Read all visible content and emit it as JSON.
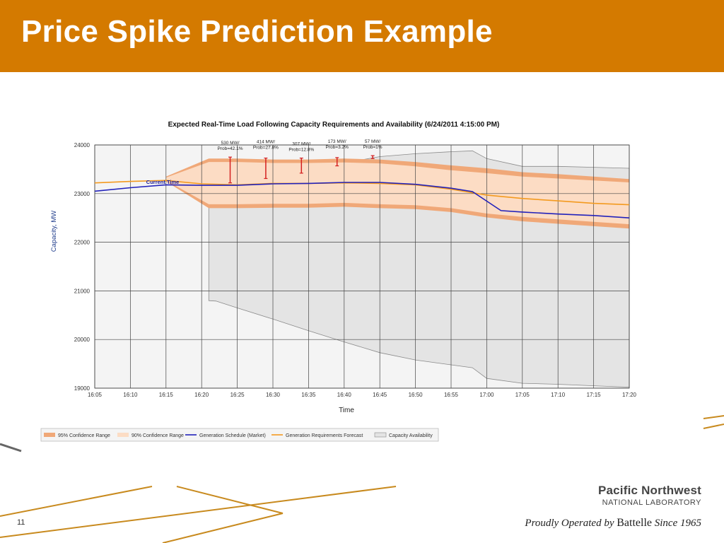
{
  "slide": {
    "title": "Price Spike Prediction Example",
    "page_number": "11",
    "accent_color": "#d47a00"
  },
  "logo": {
    "line1": "Pacific Northwest",
    "line2": "NATIONAL LABORATORY",
    "tagline_prefix": "Proudly Operated by ",
    "tagline_brand": "Battelle",
    "tagline_suffix": " Since 1965"
  },
  "chart_data": {
    "type": "area",
    "title": "Expected Real-Time Load Following Capacity Requirements and Availability (6/24/2011 4:15:00 PM)",
    "xlabel": "Time",
    "ylabel": "Capacity, MW",
    "x_ticks": [
      "16:05",
      "16:10",
      "16:15",
      "16:20",
      "16:25",
      "16:30",
      "16:35",
      "16:40",
      "16:45",
      "16:50",
      "16:55",
      "17:00",
      "17:05",
      "17:10",
      "17:15",
      "17:20"
    ],
    "xlim": [
      "16:05",
      "17:20"
    ],
    "y_ticks": [
      19000,
      20000,
      21000,
      22000,
      23000,
      24000
    ],
    "ylim": [
      19000,
      24000
    ],
    "grid": true,
    "legend_placement": "bottom-left",
    "current_time_label": "Current Time",
    "current_time": "16:15",
    "colors": {
      "ci95": "#f0a878",
      "ci90": "#fcdcc4",
      "generation_schedule": "#2222bb",
      "generation_requirements": "#f39a1f",
      "capacity_availability": "#e4e4e4",
      "spike_marker": "#d42020"
    },
    "series": [
      {
        "name": "Generation Schedule (Market)",
        "x": [
          "16:05",
          "16:10",
          "16:15",
          "16:20",
          "16:25",
          "16:30",
          "16:35",
          "16:40",
          "16:45",
          "16:50",
          "16:55",
          "16:58",
          "17:02",
          "17:05",
          "17:10",
          "17:15",
          "17:20"
        ],
        "values": [
          23050,
          23120,
          23180,
          23170,
          23170,
          23200,
          23210,
          23230,
          23230,
          23190,
          23110,
          23040,
          22650,
          22620,
          22580,
          22550,
          22500
        ]
      },
      {
        "name": "Generation Requirements Forecast",
        "x": [
          "16:05",
          "16:10",
          "16:15",
          "16:20",
          "16:25",
          "16:30",
          "16:35",
          "16:40",
          "16:45",
          "16:50",
          "16:55",
          "17:00",
          "17:05",
          "17:10",
          "17:15",
          "17:20"
        ],
        "values": [
          23220,
          23250,
          23270,
          23200,
          23180,
          23210,
          23210,
          23220,
          23210,
          23180,
          23090,
          22970,
          22900,
          22850,
          22800,
          22770
        ]
      },
      {
        "name": "95% Confidence Range",
        "x": [
          "16:15",
          "16:21",
          "16:25",
          "16:30",
          "16:35",
          "16:40",
          "16:45",
          "16:50",
          "16:55",
          "17:00",
          "17:05",
          "17:10",
          "17:15",
          "17:20"
        ],
        "upper": [
          23350,
          23720,
          23720,
          23700,
          23700,
          23720,
          23700,
          23650,
          23580,
          23520,
          23440,
          23400,
          23350,
          23300
        ],
        "lower": [
          23250,
          22700,
          22700,
          22710,
          22710,
          22730,
          22700,
          22680,
          22620,
          22510,
          22430,
          22380,
          22330,
          22280
        ]
      },
      {
        "name": "90% Confidence Range",
        "x": [
          "16:15",
          "16:21",
          "16:25",
          "16:30",
          "16:35",
          "16:40",
          "16:45",
          "16:50",
          "16:55",
          "17:00",
          "17:05",
          "17:10",
          "17:15",
          "17:20"
        ],
        "upper": [
          23330,
          23650,
          23650,
          23630,
          23630,
          23640,
          23620,
          23560,
          23480,
          23420,
          23350,
          23310,
          23270,
          23230
        ],
        "lower": [
          23270,
          22780,
          22780,
          22790,
          22790,
          22810,
          22780,
          22760,
          22700,
          22590,
          22520,
          22470,
          22420,
          22370
        ]
      },
      {
        "name": "Capacity Availability",
        "x": [
          "16:21",
          "16:22",
          "16:25",
          "16:30",
          "16:35",
          "16:40",
          "16:45",
          "16:50",
          "16:55",
          "16:58",
          "17:00",
          "17:05",
          "17:10",
          "17:15",
          "17:20"
        ],
        "upper": [
          23170,
          23200,
          23260,
          23350,
          23490,
          23630,
          23760,
          23820,
          23860,
          23880,
          23720,
          23560,
          23560,
          23540,
          23520
        ],
        "lower": [
          20800,
          20790,
          20650,
          20420,
          20180,
          19950,
          19730,
          19580,
          19480,
          19420,
          19200,
          19100,
          19080,
          19050,
          19020
        ]
      }
    ],
    "spike_annotations": [
      {
        "x": "16:24",
        "mw": "530 MW/",
        "prob": "Prob=42.1%",
        "top": 23750,
        "bottom": 23220
      },
      {
        "x": "16:29",
        "mw": "414 MW/",
        "prob": "Prob=27.8%",
        "top": 23730,
        "bottom": 23310
      },
      {
        "x": "16:34",
        "mw": "307 MW/",
        "prob": "Prob=12.8%",
        "top": 23730,
        "bottom": 23420
      },
      {
        "x": "16:39",
        "mw": "173 MW/",
        "prob": "Prob=3.2%",
        "top": 23740,
        "bottom": 23570
      },
      {
        "x": "16:44",
        "mw": "57 MW/",
        "prob": "Prob=1%",
        "top": 23780,
        "bottom": 23720
      }
    ],
    "legend": [
      {
        "label": "95% Confidence Range",
        "kind": "band",
        "color": "#f0a878"
      },
      {
        "label": "90% Confidence Range",
        "kind": "band",
        "color": "#fcdcc4"
      },
      {
        "label": "Generation Schedule (Market)",
        "kind": "line",
        "color": "#2222bb"
      },
      {
        "label": "Generation Requirements Forecast",
        "kind": "line",
        "color": "#f39a1f"
      },
      {
        "label": "Capacity Availability",
        "kind": "band",
        "color": "#e4e4e4"
      }
    ]
  }
}
